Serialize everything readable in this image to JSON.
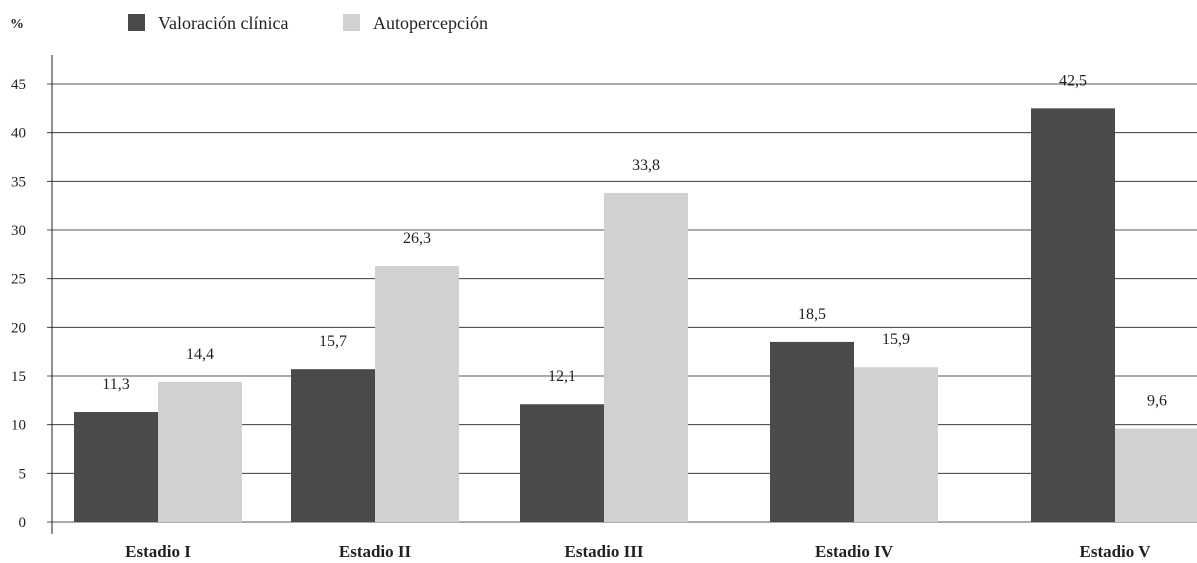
{
  "chart_data": {
    "type": "bar",
    "ylabel": "%",
    "xlabel": "",
    "ylim": [
      0,
      45
    ],
    "yticks": [
      "0",
      "5",
      "10",
      "15",
      "20",
      "25",
      "30",
      "35",
      "40",
      "45"
    ],
    "categories": [
      "Estadio I",
      "Estadio II",
      "Estadio III",
      "Estadio IV",
      "Estadio V"
    ],
    "series": [
      {
        "name": "Valoración clínica",
        "color": "#4a4a4c",
        "values": [
          11.3,
          15.7,
          12.1,
          18.5,
          42.5
        ],
        "labels": [
          "11,3",
          "15,7",
          "12,1",
          "18,5",
          "42,5"
        ]
      },
      {
        "name": "Autopercepción",
        "color": "#d0d1d3",
        "values": [
          14.4,
          26.3,
          33.8,
          15.9,
          9.6
        ],
        "labels": [
          "14,4",
          "26,3",
          "33,8",
          "15,9",
          "9,6"
        ]
      }
    ],
    "grid": true,
    "legend_position": "top-left"
  }
}
